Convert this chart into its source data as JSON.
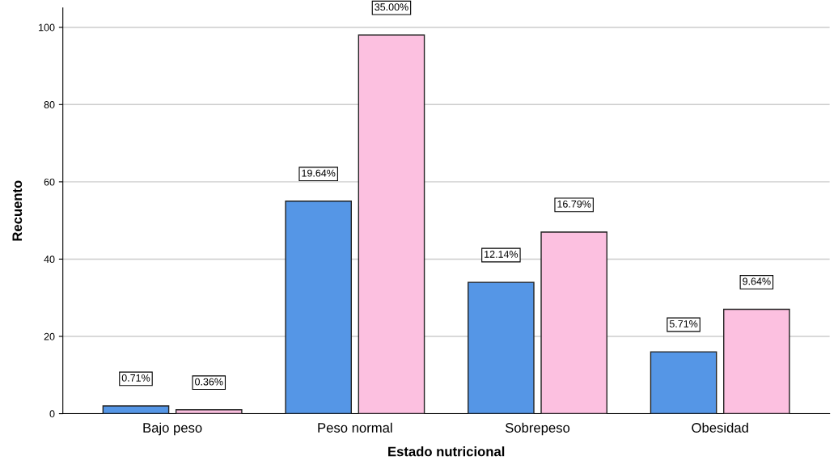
{
  "chart_data": {
    "type": "bar",
    "xlabel": "Estado nutricional",
    "ylabel": "Recuento",
    "categories": [
      "Bajo peso",
      "Peso normal",
      "Sobrepeso",
      "Obesidad"
    ],
    "series": [
      {
        "color": "#5596e6",
        "values": [
          2,
          55,
          34,
          16
        ]
      },
      {
        "color": "#fcc0e0",
        "values": [
          1,
          98,
          47,
          27
        ]
      }
    ],
    "annotations": [
      "0.71%",
      "0.36%",
      "19.64%",
      "35.00%",
      "12.14%",
      "16.79%",
      "5.71%",
      "9.64%"
    ],
    "ylim": [
      0,
      105
    ],
    "yticks": [
      0,
      20,
      40,
      60,
      80,
      100
    ],
    "grid": "y"
  }
}
